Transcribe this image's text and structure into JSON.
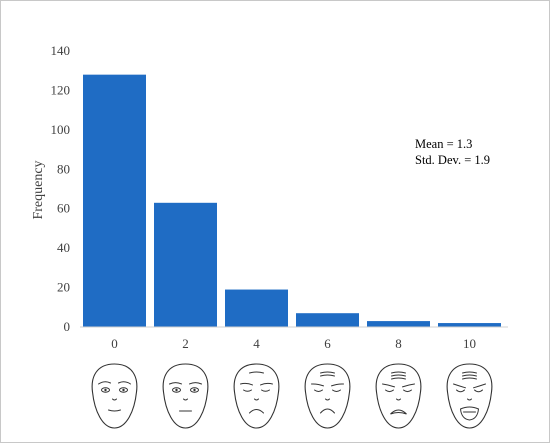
{
  "chart_data": {
    "type": "bar",
    "categories": [
      "0",
      "2",
      "4",
      "6",
      "8",
      "10"
    ],
    "values": [
      128,
      63,
      19,
      7,
      3,
      2
    ],
    "ylabel": "Frequency",
    "xlabel": "",
    "ylim": [
      0,
      140
    ],
    "yticks": [
      "0",
      "20",
      "40",
      "60",
      "80",
      "100",
      "120",
      "140"
    ],
    "bar_color": "#1f6cc4",
    "grid": false,
    "annotations": [
      "Mean = 1.3",
      "Std. Dev. = 1.9"
    ]
  },
  "faces": [
    {
      "name": "face-rating-0"
    },
    {
      "name": "face-rating-2"
    },
    {
      "name": "face-rating-4"
    },
    {
      "name": "face-rating-6"
    },
    {
      "name": "face-rating-8"
    },
    {
      "name": "face-rating-10"
    }
  ]
}
